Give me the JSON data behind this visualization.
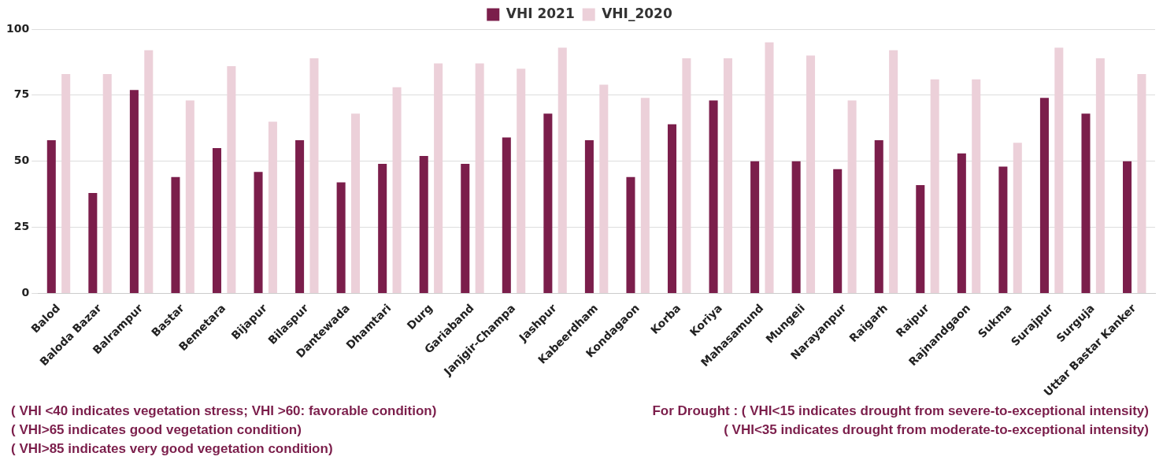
{
  "chart_data": {
    "type": "bar",
    "categories": [
      "Balod",
      "Baloda Bazar",
      "Balrampur",
      "Bastar",
      "Bemetara",
      "Bijapur",
      "Bilaspur",
      "Dantewada",
      "Dhamtari",
      "Durg",
      "Gariaband",
      "Janjgir-Champa",
      "Jashpur",
      "Kabeerdham",
      "Kondagaon",
      "Korba",
      "Koriya",
      "Mahasamund",
      "Mungeli",
      "Narayanpur",
      "Raigarh",
      "Raipur",
      "Rajnandgaon",
      "Sukma",
      "Surajpur",
      "Surguja",
      "Uttar Bastar Kanker"
    ],
    "series": [
      {
        "name": "VHI 2021",
        "color": "#7b1e4b",
        "values": [
          58,
          38,
          77,
          44,
          55,
          46,
          58,
          42,
          49,
          52,
          49,
          59,
          68,
          58,
          44,
          64,
          73,
          50,
          50,
          47,
          58,
          41,
          53,
          48,
          74,
          68,
          50
        ]
      },
      {
        "name": "VHI_2020",
        "color": "#ecd0d9",
        "values": [
          83,
          83,
          92,
          73,
          86,
          65,
          89,
          68,
          78,
          87,
          87,
          85,
          93,
          79,
          74,
          89,
          89,
          95,
          90,
          73,
          92,
          81,
          81,
          57,
          93,
          89,
          83
        ]
      }
    ],
    "ylim": [
      0,
      100
    ],
    "yticks": [
      0,
      25,
      50,
      75,
      100
    ],
    "grid": "y",
    "legend": "top",
    "annotations": [
      "( VHI <40 indicates vegetation stress; VHI >60: favorable condition)",
      "( VHI>65 indicates good vegetation condition)",
      "( VHI>85 indicates very good vegetation condition)",
      "For Drought : ( VHI<15 indicates drought from severe-to-exceptional intensity)",
      "( VHI<35 indicates drought from moderate-to-exceptional intensity)"
    ]
  }
}
